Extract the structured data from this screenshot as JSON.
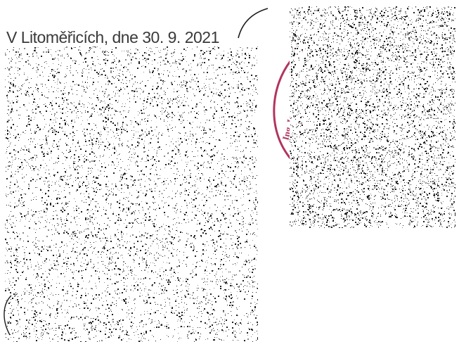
{
  "document": {
    "place_date": "V Litoměřicích, dne 30. 9. 2021"
  },
  "stamp": {
    "ink_color": "#b2345e",
    "visible_fragment": "Ing. L"
  },
  "redaction": {
    "style": "noise",
    "dark_color": "#222222",
    "mid_color": "#8a8a8a",
    "light_color": "#ffffff"
  }
}
